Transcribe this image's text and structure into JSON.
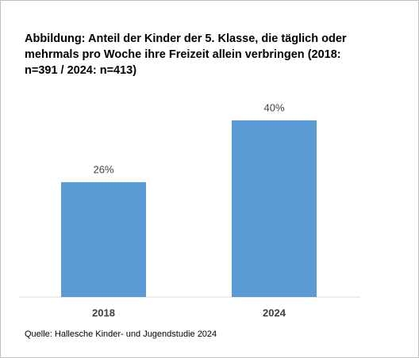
{
  "chart_data": {
    "type": "bar",
    "title": "Abbildung: Anteil der Kinder der 5. Klasse, die täglich oder mehrmals pro Woche ihre Freizeit allein verbringen (2018: n=391 / 2024: n=413)",
    "categories": [
      "2018",
      "2024"
    ],
    "values": [
      26,
      40
    ],
    "value_labels": [
      "26%",
      "40%"
    ],
    "color": "#5b9bd5",
    "source": "Quelle: Hallesche Kinder- und Jugendstudie 2024"
  }
}
